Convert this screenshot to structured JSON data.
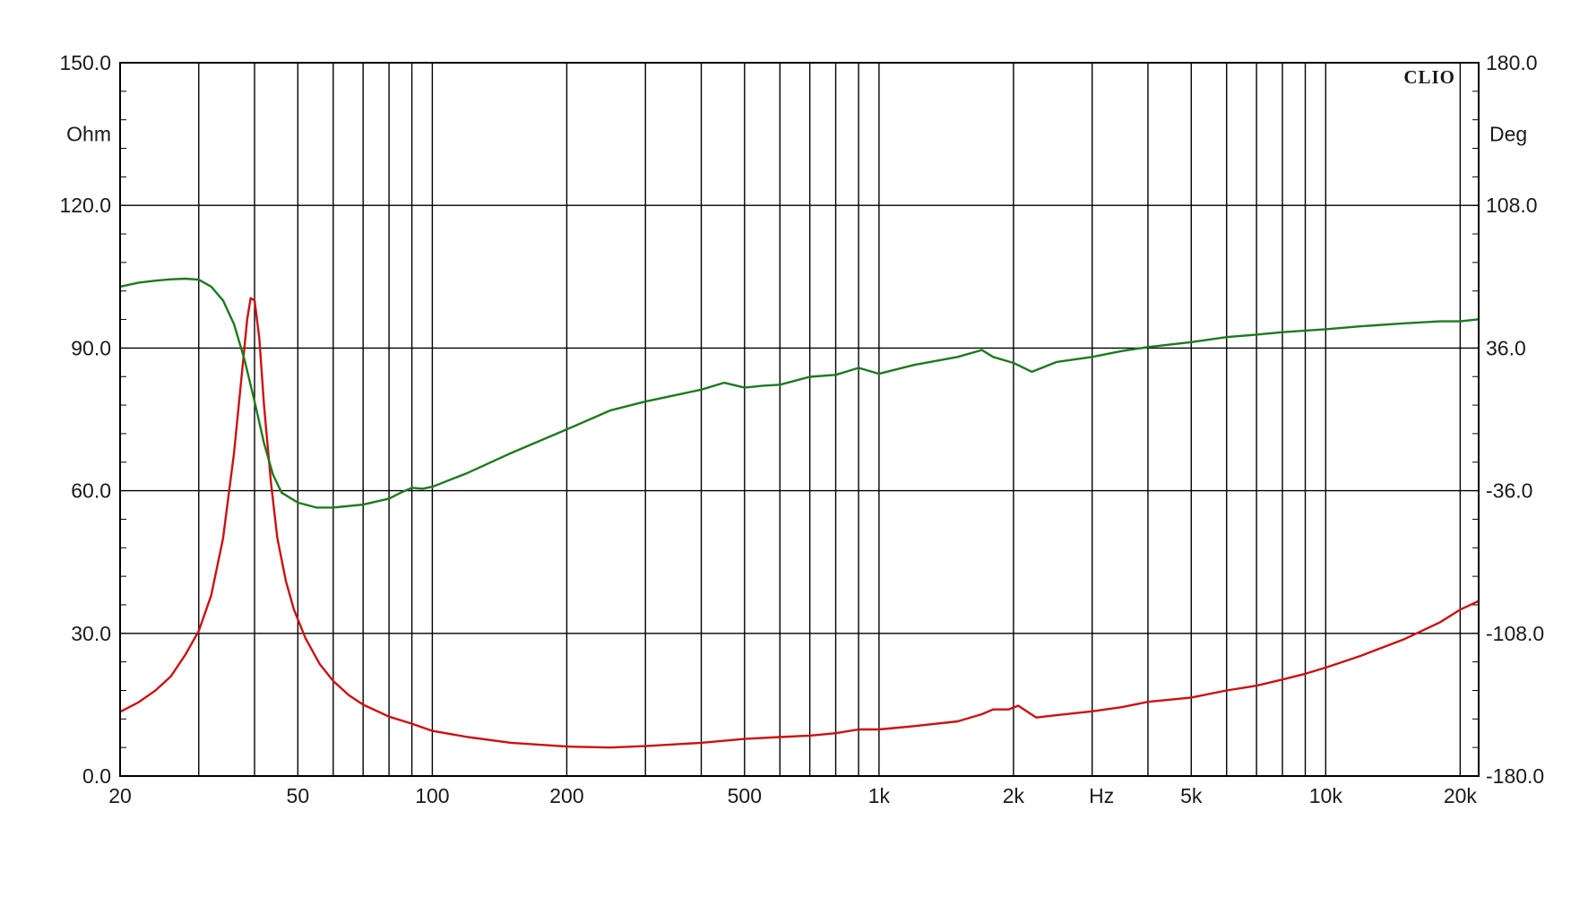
{
  "chart_data": {
    "type": "line",
    "brand": "CLIO",
    "x_scale": "log",
    "xlim": [
      20,
      22000
    ],
    "x_ticks": [
      {
        "value": 20,
        "label": "20"
      },
      {
        "value": 50,
        "label": "50"
      },
      {
        "value": 100,
        "label": "100"
      },
      {
        "value": 200,
        "label": "200"
      },
      {
        "value": 500,
        "label": "500"
      },
      {
        "value": 1000,
        "label": "1k"
      },
      {
        "value": 2000,
        "label": "2k"
      },
      {
        "value": 5000,
        "label": "5k"
      },
      {
        "value": 10000,
        "label": "10k"
      },
      {
        "value": 20000,
        "label": "20k"
      }
    ],
    "x_unit": "Hz",
    "x_unit_at": 3150,
    "x_gridlines": [
      20,
      30,
      40,
      50,
      60,
      70,
      80,
      90,
      100,
      200,
      300,
      400,
      500,
      600,
      700,
      800,
      900,
      1000,
      2000,
      3000,
      4000,
      5000,
      6000,
      7000,
      8000,
      9000,
      10000,
      20000
    ],
    "y_left": {
      "unit": "Ohm",
      "unit_at": 135,
      "lim": [
        0,
        150
      ],
      "ticks": [
        {
          "value": 0,
          "label": "0.0"
        },
        {
          "value": 30,
          "label": "30.0"
        },
        {
          "value": 60,
          "label": "60.0"
        },
        {
          "value": 90,
          "label": "90.0"
        },
        {
          "value": 120,
          "label": "120.0"
        },
        {
          "value": 150,
          "label": "150.0"
        }
      ]
    },
    "y_right": {
      "unit": "Deg",
      "unit_at": 144,
      "lim": [
        -180,
        180
      ],
      "ticks": [
        {
          "value": -180,
          "label": "-180.0"
        },
        {
          "value": -108,
          "label": "-108.0"
        },
        {
          "value": -36,
          "label": "-36.0"
        },
        {
          "value": 36,
          "label": "36.0"
        },
        {
          "value": 108,
          "label": "108.0"
        },
        {
          "value": 180,
          "label": "180.0"
        }
      ]
    },
    "grid": true,
    "series": [
      {
        "color": "#cc1111",
        "axis": "left",
        "points": [
          [
            20,
            13.5
          ],
          [
            22,
            15.5
          ],
          [
            24,
            18
          ],
          [
            26,
            21
          ],
          [
            28,
            25.5
          ],
          [
            30,
            30.5
          ],
          [
            32,
            38
          ],
          [
            34,
            50
          ],
          [
            36,
            68
          ],
          [
            37.5,
            85
          ],
          [
            38.5,
            96
          ],
          [
            39.2,
            100.5
          ],
          [
            40,
            100
          ],
          [
            41,
            92
          ],
          [
            42,
            78
          ],
          [
            43.5,
            62
          ],
          [
            45,
            50
          ],
          [
            47,
            41
          ],
          [
            49,
            35
          ],
          [
            52,
            29
          ],
          [
            56,
            23.5
          ],
          [
            60,
            20
          ],
          [
            65,
            17
          ],
          [
            70,
            15
          ],
          [
            80,
            12.5
          ],
          [
            90,
            11
          ],
          [
            100,
            9.5
          ],
          [
            120,
            8.2
          ],
          [
            150,
            7
          ],
          [
            200,
            6.2
          ],
          [
            250,
            6
          ],
          [
            300,
            6.3
          ],
          [
            400,
            7
          ],
          [
            500,
            7.8
          ],
          [
            600,
            8.2
          ],
          [
            700,
            8.5
          ],
          [
            800,
            9
          ],
          [
            900,
            9.8
          ],
          [
            1000,
            9.8
          ],
          [
            1200,
            10.5
          ],
          [
            1500,
            11.5
          ],
          [
            1700,
            13
          ],
          [
            1800,
            14
          ],
          [
            1950,
            14
          ],
          [
            2050,
            14.8
          ],
          [
            2150,
            13.5
          ],
          [
            2250,
            12.3
          ],
          [
            2500,
            12.8
          ],
          [
            3000,
            13.6
          ],
          [
            3500,
            14.5
          ],
          [
            4000,
            15.6
          ],
          [
            5000,
            16.5
          ],
          [
            6000,
            18
          ],
          [
            7000,
            19
          ],
          [
            8000,
            20.3
          ],
          [
            9000,
            21.5
          ],
          [
            10000,
            22.8
          ],
          [
            12000,
            25.3
          ],
          [
            15000,
            28.8
          ],
          [
            18000,
            32.3
          ],
          [
            20000,
            35
          ],
          [
            22000,
            36.8
          ]
        ]
      },
      {
        "color": "#1e7a1e",
        "axis": "right",
        "points": [
          [
            20,
            67
          ],
          [
            22,
            69
          ],
          [
            24,
            70
          ],
          [
            26,
            70.7
          ],
          [
            28,
            71
          ],
          [
            30,
            70.5
          ],
          [
            32,
            67
          ],
          [
            34,
            60
          ],
          [
            36,
            48
          ],
          [
            38,
            30
          ],
          [
            40,
            9
          ],
          [
            42,
            -12
          ],
          [
            44,
            -28
          ],
          [
            46,
            -37
          ],
          [
            50,
            -42
          ],
          [
            55,
            -44.5
          ],
          [
            60,
            -44.5
          ],
          [
            70,
            -43
          ],
          [
            80,
            -40
          ],
          [
            85,
            -37
          ],
          [
            90,
            -34.5
          ],
          [
            95,
            -35
          ],
          [
            100,
            -34
          ],
          [
            120,
            -27
          ],
          [
            150,
            -17
          ],
          [
            200,
            -5
          ],
          [
            250,
            4.5
          ],
          [
            300,
            9
          ],
          [
            400,
            15
          ],
          [
            450,
            18.5
          ],
          [
            500,
            16
          ],
          [
            550,
            17
          ],
          [
            600,
            17.5
          ],
          [
            700,
            21.5
          ],
          [
            800,
            22.5
          ],
          [
            900,
            26
          ],
          [
            1000,
            23
          ],
          [
            1200,
            27.5
          ],
          [
            1500,
            31.5
          ],
          [
            1700,
            35
          ],
          [
            1800,
            31.5
          ],
          [
            2000,
            28.5
          ],
          [
            2200,
            24
          ],
          [
            2500,
            29
          ],
          [
            3000,
            31.5
          ],
          [
            3500,
            34.5
          ],
          [
            4000,
            36.5
          ],
          [
            5000,
            39
          ],
          [
            6000,
            41.5
          ],
          [
            7000,
            42.8
          ],
          [
            8000,
            44
          ],
          [
            9000,
            44.8
          ],
          [
            10000,
            45.5
          ],
          [
            12000,
            47
          ],
          [
            15000,
            48.5
          ],
          [
            18000,
            49.5
          ],
          [
            20000,
            49.5
          ],
          [
            22000,
            50.5
          ]
        ]
      }
    ]
  }
}
